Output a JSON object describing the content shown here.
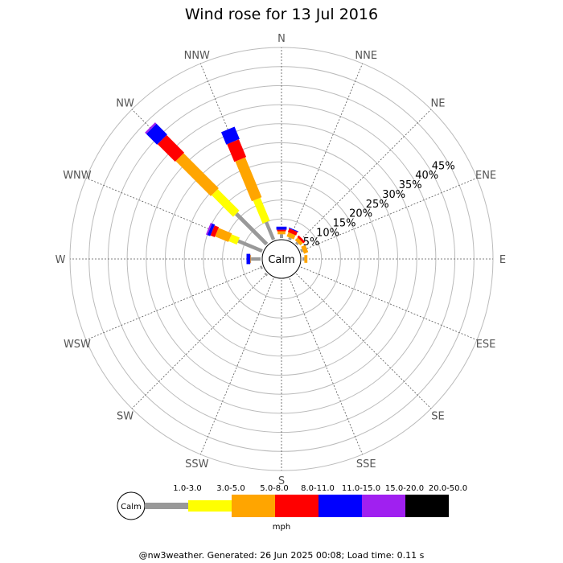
{
  "chart_data": {
    "type": "wind-rose",
    "title": "Wind rose for 13 Jul 2016",
    "directions": [
      "N",
      "NNE",
      "NE",
      "ENE",
      "E",
      "ESE",
      "SE",
      "SSE",
      "S",
      "SSW",
      "SW",
      "WSW",
      "W",
      "WNW",
      "NW",
      "NNW"
    ],
    "radial_ticks": [
      "5%",
      "10%",
      "15%",
      "20%",
      "25%",
      "30%",
      "35%",
      "40%",
      "45%"
    ],
    "radial_tick_values": [
      5,
      10,
      15,
      20,
      25,
      30,
      35,
      40,
      45
    ],
    "radial_max": 50,
    "calm_label": "Calm",
    "unit": "mph",
    "speed_bins": [
      {
        "label": "1.0-3.0",
        "color": "#999999"
      },
      {
        "label": "3.0-5.0",
        "color": "#ffff00"
      },
      {
        "label": "5.0-8.0",
        "color": "#ffa500"
      },
      {
        "label": "8.0-11.0",
        "color": "#ff0000"
      },
      {
        "label": "11.0-15.0",
        "color": "#0000ff"
      },
      {
        "label": "15.0-20.0",
        "color": "#a020f0"
      },
      {
        "label": "20.0-50.0",
        "color": "#000000"
      }
    ],
    "series": [
      {
        "direction": "N",
        "values": [
          1.0,
          0.0,
          0.8,
          0.4,
          0.8,
          0,
          0
        ]
      },
      {
        "direction": "NNE",
        "values": [
          0.5,
          0.0,
          1.2,
          1.0,
          0.2,
          0,
          0
        ]
      },
      {
        "direction": "NE",
        "values": [
          0.5,
          0.0,
          1.0,
          0.6,
          0.0,
          0,
          0
        ]
      },
      {
        "direction": "ENE",
        "values": [
          0.5,
          0.0,
          1.2,
          0.0,
          0.0,
          0,
          0
        ]
      },
      {
        "direction": "E",
        "values": [
          0.5,
          0.0,
          0.8,
          0.0,
          0.0,
          0,
          0
        ]
      },
      {
        "direction": "ESE",
        "values": [
          0,
          0,
          0,
          0,
          0,
          0,
          0
        ]
      },
      {
        "direction": "SE",
        "values": [
          0,
          0,
          0,
          0,
          0,
          0,
          0
        ]
      },
      {
        "direction": "SSE",
        "values": [
          0,
          0,
          0,
          0,
          0,
          0,
          0
        ]
      },
      {
        "direction": "S",
        "values": [
          0,
          0,
          0,
          0,
          0,
          0,
          0
        ]
      },
      {
        "direction": "SSW",
        "values": [
          0,
          0,
          0,
          0,
          0,
          0,
          0
        ]
      },
      {
        "direction": "SW",
        "values": [
          0.5,
          0.0,
          0.0,
          0.0,
          0.0,
          0,
          0
        ]
      },
      {
        "direction": "WSW",
        "values": [
          0.5,
          0.0,
          0.0,
          0.0,
          0.0,
          0,
          0
        ]
      },
      {
        "direction": "W",
        "values": [
          2.5,
          0.0,
          0.2,
          0.0,
          1.0,
          0,
          0
        ]
      },
      {
        "direction": "WNW",
        "values": [
          6.8,
          2.3,
          3.8,
          1.2,
          0.8,
          0.4,
          0
        ]
      },
      {
        "direction": "NW",
        "values": [
          11.3,
          8.0,
          13.0,
          6.5,
          4.0,
          0.5,
          0
        ]
      },
      {
        "direction": "NNW",
        "values": [
          5.0,
          6.5,
          11.3,
          5.0,
          3.5,
          0,
          0
        ]
      }
    ]
  },
  "footer": "@nw3weather. Generated: 26 Jun 2025 00:08; Load time: 0.11 s"
}
